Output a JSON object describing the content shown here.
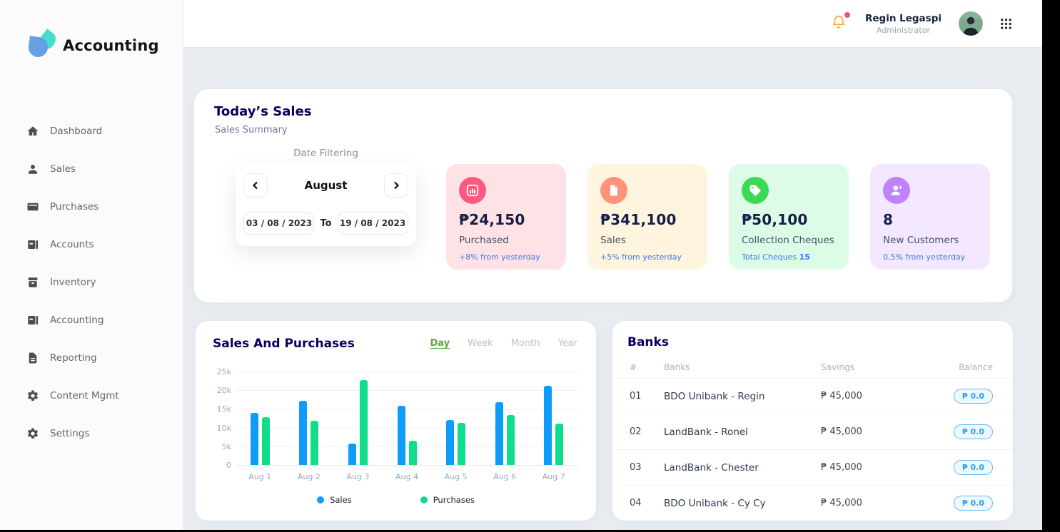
{
  "app": {
    "logo_text": "Accounting",
    "logo_icon": "droplet-logo-icon"
  },
  "sidebar": {
    "items": [
      {
        "label": "Dashboard",
        "icon": "home-icon"
      },
      {
        "label": "Sales",
        "icon": "person-icon"
      },
      {
        "label": "Purchases",
        "icon": "wallet-icon"
      },
      {
        "label": "Accounts",
        "icon": "book-icon"
      },
      {
        "label": "Inventory",
        "icon": "inventory-icon"
      },
      {
        "label": "Accounting",
        "icon": "book-icon"
      },
      {
        "label": "Reporting",
        "icon": "report-icon"
      },
      {
        "label": "Content Mgmt",
        "icon": "gear-icon"
      },
      {
        "label": "Settings",
        "icon": "gear-icon"
      }
    ]
  },
  "header": {
    "notification_icon": "bell-icon",
    "has_notification_dot": true,
    "user_name": "Regin Legaspi",
    "user_role": "Administrator",
    "avatar_icon": "avatar",
    "apps_icon": "grid-icon"
  },
  "today_sales": {
    "title": "Today’s Sales",
    "subtitle": "Sales Summary",
    "date_filter": {
      "label": "Date Filtering",
      "month": "August",
      "from": "03 / 08 / 2023",
      "to_label": "To",
      "to": "19 / 08 / 2023"
    },
    "stats": [
      {
        "value": "₱24,150",
        "label": "Purchased",
        "note": "+8% from yesterday",
        "note_bold": "",
        "bg": "#ffe2e5",
        "circle": "#fa5a7d",
        "icon": "bar-chart-icon"
      },
      {
        "value": "₱341,100",
        "label": "Sales",
        "note": "+5% from yesterday",
        "note_bold": "",
        "bg": "#fff4de",
        "circle": "#ff947a",
        "icon": "file-icon"
      },
      {
        "value": "₱50,100",
        "label": "Collection Cheques",
        "note": "Total Cheques ",
        "note_bold": "15",
        "bg": "#dcfce7",
        "circle": "#3cd856",
        "icon": "tag-icon"
      },
      {
        "value": "8",
        "label": "New Customers",
        "note": "0,5% from yesterday",
        "note_bold": "",
        "bg": "#f3e8ff",
        "circle": "#bf83ff",
        "icon": "user-add-icon"
      }
    ]
  },
  "chart_data": {
    "type": "bar",
    "title": "Sales And Purchases",
    "tabs": [
      "Day",
      "Week",
      "Month",
      "Year"
    ],
    "active_tab": "Day",
    "categories": [
      "Aug 1",
      "Aug 2",
      "Aug 3",
      "Aug 4",
      "Aug 5",
      "Aug 6",
      "Aug 7"
    ],
    "series": [
      {
        "name": "Sales",
        "color": "#0d9bfc",
        "values": [
          13900,
          17100,
          5800,
          15800,
          12000,
          16800,
          21200
        ]
      },
      {
        "name": "Purchases",
        "color": "#10dd89",
        "values": [
          12700,
          11900,
          22700,
          6500,
          11200,
          13400,
          11000
        ]
      }
    ],
    "y_ticks": [
      "25k",
      "20k",
      "15k",
      "10k",
      "5k",
      "0"
    ],
    "ylim": [
      0,
      25000
    ],
    "grid": true,
    "legend_position": "bottom"
  },
  "banks": {
    "title": "Banks",
    "headers": [
      "#",
      "Banks",
      "Savings",
      "Balance"
    ],
    "rows": [
      {
        "num": "01",
        "name": "BDO Unibank - Regin",
        "savings": "₱ 45,000",
        "balance": "₱ 0.0"
      },
      {
        "num": "02",
        "name": "LandBank - Ronel",
        "savings": "₱ 45,000",
        "balance": "₱ 0.0"
      },
      {
        "num": "03",
        "name": "LandBank - Chester",
        "savings": "₱ 45,000",
        "balance": "₱ 0.0"
      },
      {
        "num": "04",
        "name": "BDO Unibank - Cy Cy",
        "savings": "₱ 45,000",
        "balance": "₱ 0.0"
      }
    ],
    "balance_badge_color": "#2ba0f3"
  }
}
